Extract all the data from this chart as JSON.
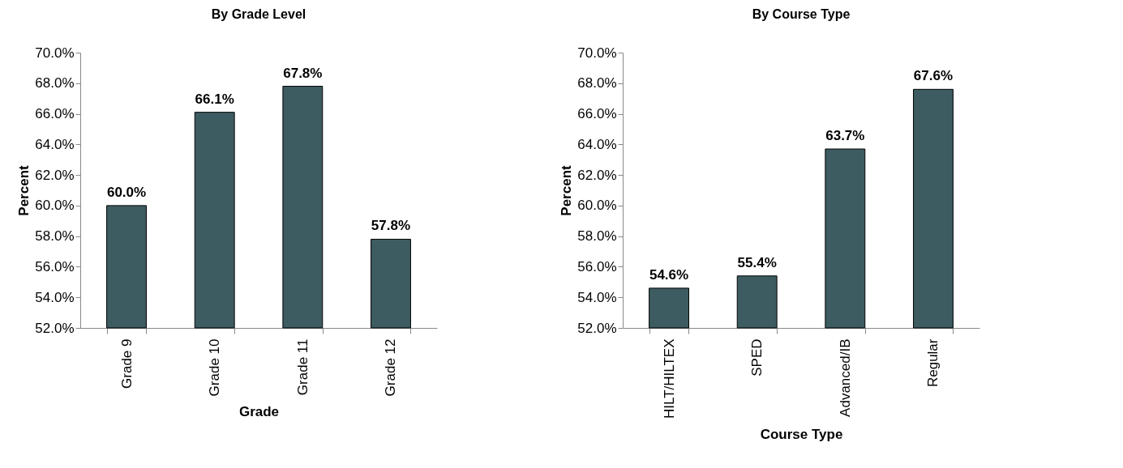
{
  "chart_data": [
    {
      "type": "bar",
      "title": "By Grade Level",
      "xlabel": "Grade",
      "ylabel": "Percent",
      "categories": [
        "Grade 9",
        "Grade 10",
        "Grade 11",
        "Grade 12"
      ],
      "values": [
        60.0,
        66.1,
        67.8,
        57.8
      ],
      "value_labels": [
        "60.0%",
        "66.1%",
        "67.8%",
        "57.8%"
      ],
      "color": "#3d5c61",
      "ylim": [
        52,
        70
      ],
      "yticks": [
        {
          "value": 52,
          "label": "52.0%"
        },
        {
          "value": 54,
          "label": "54.0%"
        },
        {
          "value": 56,
          "label": "56.0%"
        },
        {
          "value": 58,
          "label": "58.0%"
        },
        {
          "value": 60,
          "label": "60.0%"
        },
        {
          "value": 62,
          "label": "62.0%"
        },
        {
          "value": 64,
          "label": "64.0%"
        },
        {
          "value": 66,
          "label": "66.0%"
        },
        {
          "value": 68,
          "label": "68.0%"
        },
        {
          "value": 70,
          "label": "70.0%"
        }
      ]
    },
    {
      "type": "bar",
      "title": "By Course Type",
      "xlabel": "Course Type",
      "ylabel": "Percent",
      "categories": [
        "HILT/HILTEX",
        "SPED",
        "Advanced/IB",
        "Regular"
      ],
      "values": [
        54.6,
        55.4,
        63.7,
        67.6
      ],
      "value_labels": [
        "54.6%",
        "55.4%",
        "63.7%",
        "67.6%"
      ],
      "color": "#3d5c61",
      "ylim": [
        52,
        70
      ],
      "yticks": [
        {
          "value": 52,
          "label": "52.0%"
        },
        {
          "value": 54,
          "label": "54.0%"
        },
        {
          "value": 56,
          "label": "56.0%"
        },
        {
          "value": 58,
          "label": "58.0%"
        },
        {
          "value": 60,
          "label": "60.0%"
        },
        {
          "value": 62,
          "label": "62.0%"
        },
        {
          "value": 64,
          "label": "64.0%"
        },
        {
          "value": 66,
          "label": "66.0%"
        },
        {
          "value": 68,
          "label": "68.0%"
        },
        {
          "value": 70,
          "label": "70.0%"
        }
      ]
    }
  ]
}
